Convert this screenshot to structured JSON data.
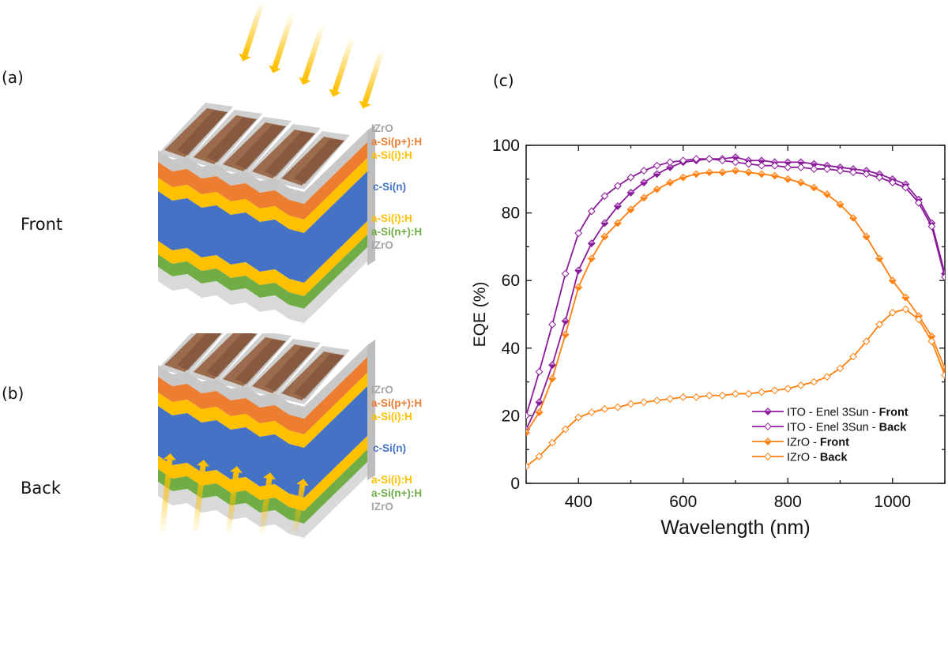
{
  "panels": {
    "a": {
      "label": "(a)",
      "side": "Front"
    },
    "b": {
      "label": "(b)",
      "side": "Back"
    },
    "c": {
      "label": "(c)"
    }
  },
  "layer_stack": {
    "labels": [
      {
        "text": "IZrO",
        "color": "#a6a6a6"
      },
      {
        "text": "a-Si(p+):H",
        "color": "#ed7d31"
      },
      {
        "text": "a-Si(i):H",
        "color": "#ffc000"
      },
      {
        "text": "c-Si(n)",
        "color": "#4472c4"
      },
      {
        "text": "a-Si(i):H",
        "color": "#ffc000"
      },
      {
        "text": "a-Si(n+):H",
        "color": "#70ad47"
      },
      {
        "text": "IZrO",
        "color": "#a6a6a6"
      }
    ],
    "colors": {
      "contact": "#9c6b4e",
      "tco": "#c8c8c8",
      "p_layer": "#ed7d31",
      "i_layer": "#ffc000",
      "bulk": "#4472c4",
      "n_layer": "#70ad47",
      "light": "#ffc000"
    }
  },
  "chart_data": {
    "type": "line",
    "title": "",
    "xlabel": "Wavelength (nm)",
    "ylabel": "EQE (%)",
    "xlim": [
      300,
      1100
    ],
    "ylim": [
      0,
      100
    ],
    "xticks": [
      400,
      600,
      800,
      1000
    ],
    "yticks": [
      0,
      20,
      40,
      60,
      80,
      100
    ],
    "grid": false,
    "legend_position": "bottom-right",
    "x": [
      300,
      325,
      350,
      375,
      400,
      425,
      450,
      475,
      500,
      525,
      550,
      575,
      600,
      625,
      650,
      675,
      700,
      725,
      750,
      775,
      800,
      825,
      850,
      875,
      900,
      925,
      950,
      975,
      1000,
      1025,
      1050,
      1075,
      1100
    ],
    "series": [
      {
        "name": "ITO - Enel 3Sun - Front",
        "name_plain": "ITO - Enel 3Sun - ",
        "name_bold": "Front",
        "color": "#8b1a9b",
        "marker": "filled-diamond",
        "values": [
          16,
          24,
          35,
          48,
          63,
          71,
          77,
          82,
          86,
          89,
          91.5,
          93.5,
          95,
          95.5,
          96,
          96,
          96.5,
          95.5,
          95.5,
          95,
          95,
          95,
          94.5,
          94,
          93.5,
          93,
          92.5,
          91.5,
          90,
          88.5,
          84,
          77,
          62
        ]
      },
      {
        "name": "ITO - Enel 3Sun - Back",
        "name_plain": "ITO - Enel 3Sun - ",
        "name_bold": "Back",
        "color": "#8b1a9b",
        "marker": "open-diamond",
        "values": [
          20,
          33,
          47,
          62,
          74,
          80.5,
          85,
          88,
          90.5,
          92.5,
          94,
          95,
          95.5,
          96,
          96,
          95.5,
          95,
          94.5,
          94,
          94,
          93.5,
          93.5,
          93,
          93,
          92.5,
          92,
          91.5,
          90.5,
          89,
          87.5,
          83,
          76,
          61
        ]
      },
      {
        "name": "IZrO - Front",
        "name_plain": "IZrO - ",
        "name_bold": "Front",
        "color": "#ff7f0e",
        "marker": "filled-diamond",
        "values": [
          15,
          21,
          31,
          44,
          58,
          66.5,
          73,
          77,
          81,
          84.5,
          87,
          89,
          90.5,
          91.5,
          92,
          92,
          92.5,
          92,
          91.5,
          91,
          90,
          89,
          87.5,
          85.5,
          82.5,
          78.5,
          73,
          66.5,
          60,
          55,
          49.5,
          43.5,
          34
        ]
      },
      {
        "name": "IZrO - Back",
        "name_plain": "IZrO - ",
        "name_bold": "Back",
        "color": "#ff7f0e",
        "marker": "open-diamond",
        "values": [
          5,
          8,
          12,
          16,
          19.5,
          21,
          22,
          22.5,
          23.5,
          24,
          24.5,
          25,
          25.5,
          25.5,
          26,
          26,
          26.5,
          26.5,
          27,
          27.5,
          28,
          29,
          30,
          31.5,
          34,
          37.5,
          42,
          47,
          50.5,
          51.5,
          48.5,
          42,
          32
        ]
      }
    ]
  }
}
